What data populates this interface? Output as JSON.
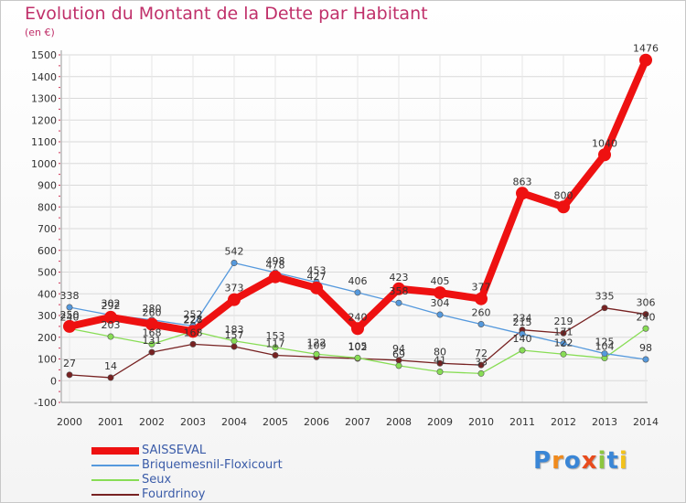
{
  "chart_data": {
    "type": "line",
    "title": "Evolution du Montant de la Dette par Habitant",
    "subtitle": "(en €)",
    "xlabel": "",
    "ylabel": "",
    "x": [
      "2000",
      "2001",
      "2002",
      "2003",
      "2004",
      "2005",
      "2006",
      "2007",
      "2008",
      "2009",
      "2010",
      "2011",
      "2012",
      "2013",
      "2014"
    ],
    "ylim": [
      -100,
      1500
    ],
    "yticks": [
      "-100",
      "0",
      "100",
      "200",
      "300",
      "400",
      "500",
      "600",
      "700",
      "800",
      "900",
      "1000",
      "1100",
      "1200",
      "1300",
      "1400",
      "1500"
    ],
    "grid": true,
    "legend_position": "bottom-left",
    "series": [
      {
        "name": "SAISSEVAL",
        "color": "#ee1111",
        "values": [
          250,
          292,
          260,
          227,
          373,
          478,
          427,
          240,
          423,
          405,
          377,
          863,
          800,
          1040,
          1476
        ],
        "labels": [
          "250",
          "292",
          "260",
          "227",
          "373",
          "478",
          "427",
          "240",
          "423",
          "405",
          "377",
          "863",
          "800",
          "1040",
          "1476"
        ]
      },
      {
        "name": "Briquemesnil-Floxicourt",
        "color": "#5599dd",
        "values": [
          338,
          302,
          280,
          252,
          542,
          498,
          453,
          406,
          358,
          304,
          260,
          215,
          171,
          125,
          98
        ],
        "labels": [
          "338",
          "302",
          "280",
          "252",
          "542",
          "498",
          "453",
          "406",
          "358",
          "304",
          "260",
          "215",
          "171",
          "125",
          "98"
        ]
      },
      {
        "name": "Seux",
        "color": "#88dd55",
        "values": [
          240,
          203,
          168,
          228,
          183,
          153,
          122,
          105,
          69,
          41,
          33,
          140,
          122,
          104,
          240
        ],
        "labels": [
          "240",
          "203",
          "168",
          "228",
          "183",
          "153",
          "122",
          "105",
          "69",
          "41",
          "33",
          "140",
          "122",
          "104",
          "240"
        ]
      },
      {
        "name": "Fourdrinoy",
        "color": "#772222",
        "values": [
          27,
          14,
          131,
          168,
          157,
          117,
          109,
          102,
          94,
          80,
          72,
          234,
          219,
          335,
          306
        ],
        "labels": [
          "27",
          "14",
          "131",
          "168",
          "157",
          "117",
          "109",
          "102",
          "94",
          "80",
          "72",
          "234",
          "219",
          "335",
          "306"
        ]
      }
    ]
  },
  "brand": {
    "logo_letters": [
      {
        "ch": "P",
        "color": "#3a86d6"
      },
      {
        "ch": "r",
        "color": "#f08a1c"
      },
      {
        "ch": "o",
        "color": "#3a86d6"
      },
      {
        "ch": "x",
        "color": "#e84b1c"
      },
      {
        "ch": "i",
        "color": "#8cc63f"
      },
      {
        "ch": "t",
        "color": "#3a86d6"
      },
      {
        "ch": "i",
        "color": "#f2c21b"
      }
    ]
  }
}
